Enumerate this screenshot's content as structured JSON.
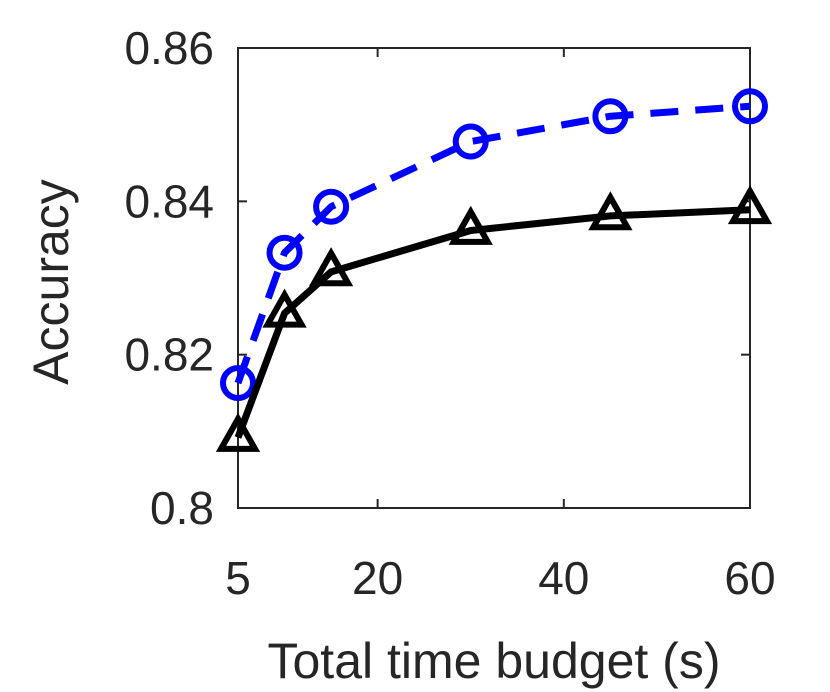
{
  "chart_data": {
    "type": "line",
    "title": "",
    "xlabel": "Total time budget (s)",
    "ylabel": "Accuracy",
    "xlim": [
      5,
      60
    ],
    "ylim": [
      0.8,
      0.86
    ],
    "xticks": [
      5,
      20,
      40,
      60
    ],
    "xtick_labels": [
      "5",
      "20",
      "40",
      "60"
    ],
    "yticks": [
      0.8,
      0.82,
      0.84,
      0.86
    ],
    "ytick_labels": [
      "0.8",
      "0.82",
      "0.84",
      "0.86"
    ],
    "grid": false,
    "legend": "none",
    "series": [
      {
        "color": "#0000ff",
        "line_style": "dashed",
        "marker": "circle",
        "x": [
          5,
          10,
          15,
          30,
          45,
          60
        ],
        "y": [
          0.8163,
          0.8333,
          0.8393,
          0.8478,
          0.8511,
          0.8524
        ]
      },
      {
        "color": "#000000",
        "line_style": "solid",
        "marker": "triangle",
        "x": [
          5,
          10,
          15,
          30,
          45,
          60
        ],
        "y": [
          0.8092,
          0.8254,
          0.8308,
          0.8362,
          0.8381,
          0.8389
        ]
      }
    ]
  }
}
